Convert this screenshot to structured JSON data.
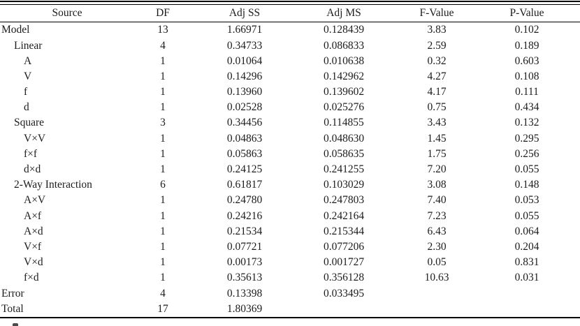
{
  "table": {
    "columns": [
      "Source",
      "DF",
      "Adj SS",
      "Adj MS",
      "F-Value",
      "P-Value"
    ],
    "rows": [
      {
        "source": "Model",
        "indent": 0,
        "df": "13",
        "adj_ss": "1.66971",
        "adj_ms": "0.128439",
        "f_value": "3.83",
        "p_value": "0.102"
      },
      {
        "source": "Linear",
        "indent": 1,
        "df": "4",
        "adj_ss": "0.34733",
        "adj_ms": "0.086833",
        "f_value": "2.59",
        "p_value": "0.189"
      },
      {
        "source": "A",
        "indent": 2,
        "df": "1",
        "adj_ss": "0.01064",
        "adj_ms": "0.010638",
        "f_value": "0.32",
        "p_value": "0.603"
      },
      {
        "source": "V",
        "indent": 2,
        "df": "1",
        "adj_ss": "0.14296",
        "adj_ms": "0.142962",
        "f_value": "4.27",
        "p_value": "0.108"
      },
      {
        "source": "f",
        "indent": 2,
        "df": "1",
        "adj_ss": "0.13960",
        "adj_ms": "0.139602",
        "f_value": "4.17",
        "p_value": "0.111"
      },
      {
        "source": "d",
        "indent": 2,
        "df": "1",
        "adj_ss": "0.02528",
        "adj_ms": "0.025276",
        "f_value": "0.75",
        "p_value": "0.434"
      },
      {
        "source": "Square",
        "indent": 1,
        "df": "3",
        "adj_ss": "0.34456",
        "adj_ms": "0.114855",
        "f_value": "3.43",
        "p_value": "0.132"
      },
      {
        "source": "V×V",
        "indent": 2,
        "df": "1",
        "adj_ss": "0.04863",
        "adj_ms": "0.048630",
        "f_value": "1.45",
        "p_value": "0.295"
      },
      {
        "source": "f×f",
        "indent": 2,
        "df": "1",
        "adj_ss": "0.05863",
        "adj_ms": "0.058635",
        "f_value": "1.75",
        "p_value": "0.256"
      },
      {
        "source": "d×d",
        "indent": 2,
        "df": "1",
        "adj_ss": "0.24125",
        "adj_ms": "0.241255",
        "f_value": "7.20",
        "p_value": "0.055"
      },
      {
        "source": "2-Way Interaction",
        "indent": 1,
        "df": "6",
        "adj_ss": "0.61817",
        "adj_ms": "0.103029",
        "f_value": "3.08",
        "p_value": "0.148"
      },
      {
        "source": "A×V",
        "indent": 2,
        "df": "1",
        "adj_ss": "0.24780",
        "adj_ms": "0.247803",
        "f_value": "7.40",
        "p_value": "0.053"
      },
      {
        "source": "A×f",
        "indent": 2,
        "df": "1",
        "adj_ss": "0.24216",
        "adj_ms": "0.242164",
        "f_value": "7.23",
        "p_value": "0.055"
      },
      {
        "source": "A×d",
        "indent": 2,
        "df": "1",
        "adj_ss": "0.21534",
        "adj_ms": "0.215344",
        "f_value": "6.43",
        "p_value": "0.064"
      },
      {
        "source": "V×f",
        "indent": 2,
        "df": "1",
        "adj_ss": "0.07721",
        "adj_ms": "0.077206",
        "f_value": "2.30",
        "p_value": "0.204"
      },
      {
        "source": "V×d",
        "indent": 2,
        "df": "1",
        "adj_ss": "0.00173",
        "adj_ms": "0.001727",
        "f_value": "0.05",
        "p_value": "0.831"
      },
      {
        "source": "f×d",
        "indent": 2,
        "df": "1",
        "adj_ss": "0.35613",
        "adj_ms": "0.356128",
        "f_value": "10.63",
        "p_value": "0.031"
      },
      {
        "source": "Error",
        "indent": 0,
        "df": "4",
        "adj_ss": "0.13398",
        "adj_ms": "0.033495",
        "f_value": "",
        "p_value": ""
      },
      {
        "source": "Total",
        "indent": 0,
        "df": "17",
        "adj_ss": "1.80369",
        "adj_ms": "",
        "f_value": "",
        "p_value": ""
      }
    ]
  }
}
